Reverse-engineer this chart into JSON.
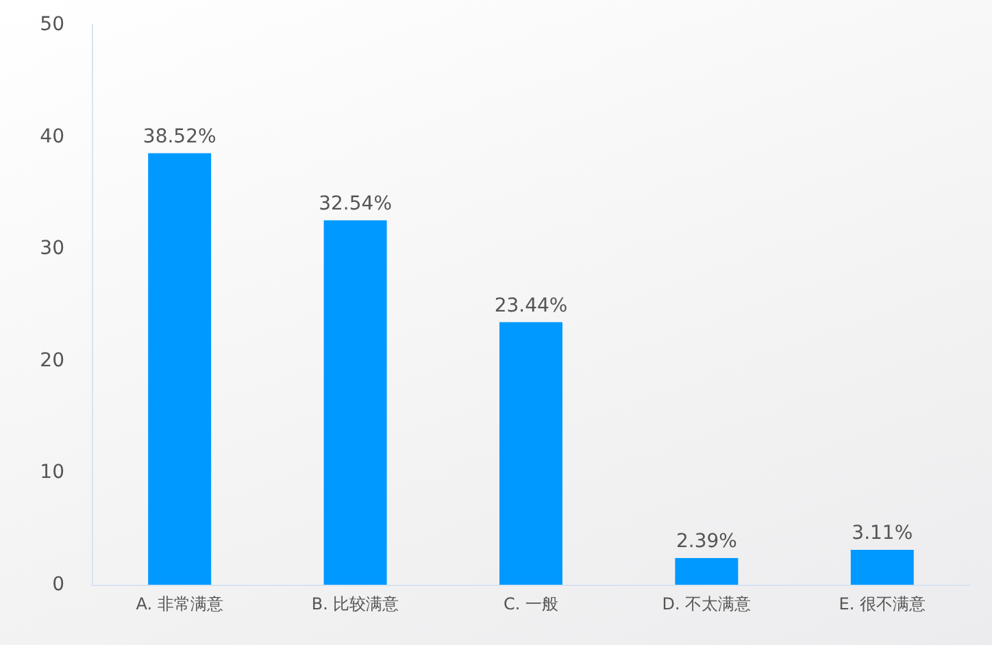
{
  "chart_data": {
    "type": "bar",
    "categories": [
      "A. 非常满意",
      "B. 比较满意",
      "C. 一般",
      "D. 不太满意",
      "E. 很不满意"
    ],
    "values": [
      38.52,
      32.54,
      23.44,
      2.39,
      3.11
    ],
    "value_labels": [
      "38.52%",
      "32.54%",
      "23.44%",
      "2.39%",
      "3.11%"
    ],
    "color": "#0099ff",
    "ylim": [
      0,
      50
    ],
    "yticks": [
      0,
      10,
      20,
      30,
      40,
      50
    ],
    "grid": false
  }
}
